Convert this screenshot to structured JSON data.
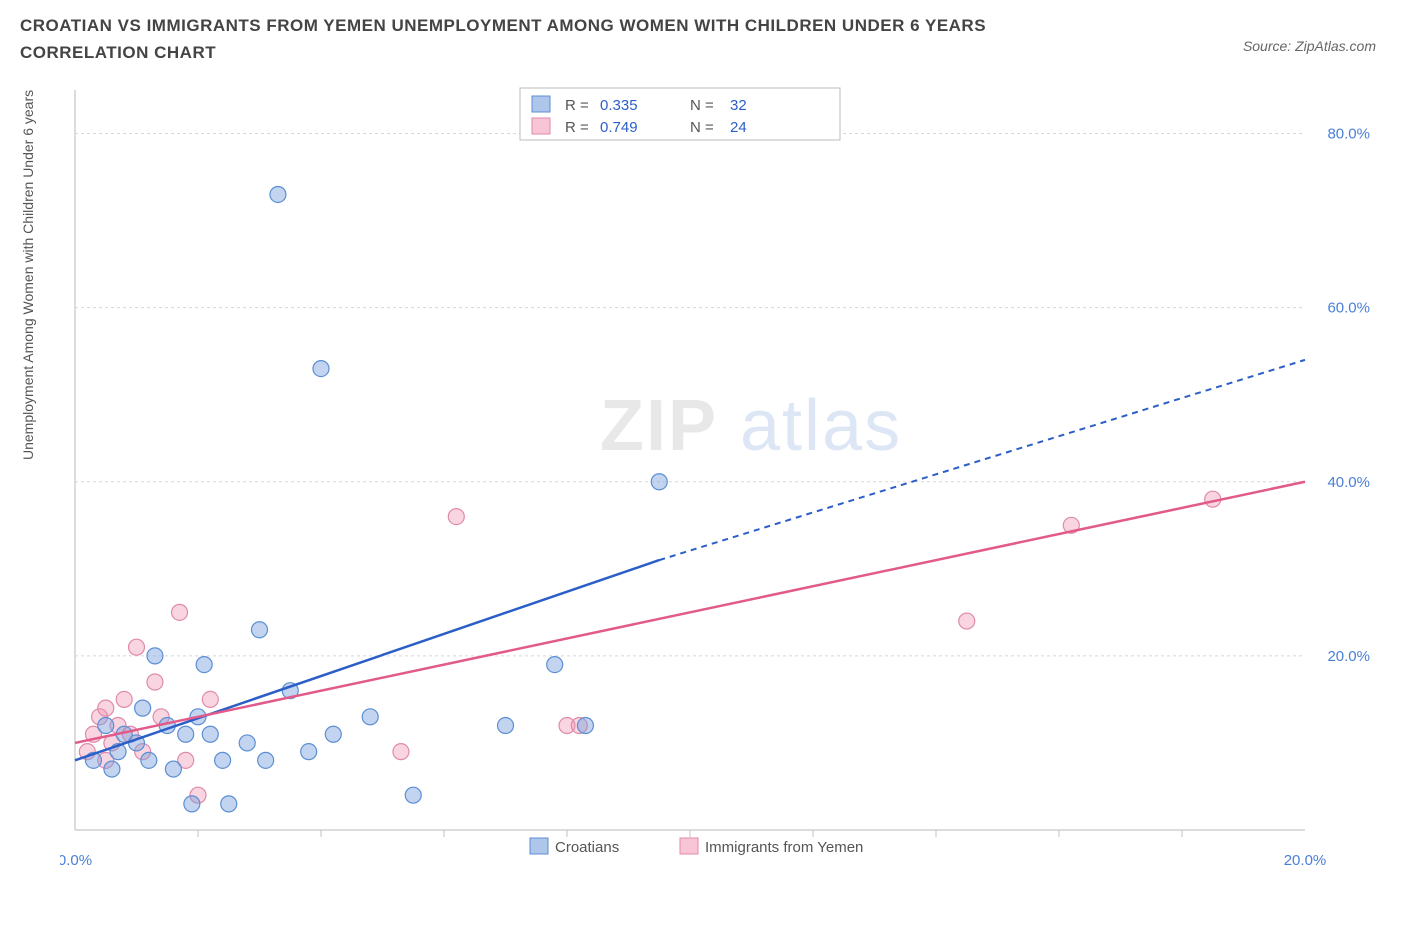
{
  "title": "CROATIAN VS IMMIGRANTS FROM YEMEN UNEMPLOYMENT AMONG WOMEN WITH CHILDREN UNDER 6 YEARS CORRELATION CHART",
  "source_label": "Source: ZipAtlas.com",
  "y_axis_label": "Unemployment Among Women with Children Under 6 years",
  "chart": {
    "type": "scatter",
    "xlim": [
      0,
      20
    ],
    "ylim": [
      0,
      85
    ],
    "x_ticks": [
      0,
      20
    ],
    "x_tick_labels": [
      "0.0%",
      "20.0%"
    ],
    "y_ticks": [
      20,
      40,
      60,
      80
    ],
    "y_tick_labels": [
      "20.0%",
      "40.0%",
      "60.0%",
      "80.0%"
    ],
    "x_minor_ticks": [
      2,
      4,
      6,
      8,
      10,
      12,
      14,
      16,
      18
    ],
    "background_color": "#ffffff",
    "grid_color": "#d8d8d8",
    "axis_color": "#d0d0d0",
    "marker_radius": 8,
    "series": {
      "croatians": {
        "label": "Croatians",
        "color_fill": "rgba(120,160,220,0.45)",
        "color_stroke": "#5b8fd4",
        "trend_color": "#2b5fc7",
        "r_value": "0.335",
        "n_value": "32",
        "points": [
          [
            0.3,
            8
          ],
          [
            0.5,
            12
          ],
          [
            0.6,
            7
          ],
          [
            0.7,
            9
          ],
          [
            0.8,
            11
          ],
          [
            1.0,
            10
          ],
          [
            1.1,
            14
          ],
          [
            1.2,
            8
          ],
          [
            1.3,
            20
          ],
          [
            1.5,
            12
          ],
          [
            1.6,
            7
          ],
          [
            1.8,
            11
          ],
          [
            1.9,
            3
          ],
          [
            2.0,
            13
          ],
          [
            2.1,
            19
          ],
          [
            2.2,
            11
          ],
          [
            2.4,
            8
          ],
          [
            2.5,
            3
          ],
          [
            2.8,
            10
          ],
          [
            3.0,
            23
          ],
          [
            3.1,
            8
          ],
          [
            3.3,
            73
          ],
          [
            3.5,
            16
          ],
          [
            3.8,
            9
          ],
          [
            4.0,
            53
          ],
          [
            4.2,
            11
          ],
          [
            4.8,
            13
          ],
          [
            5.5,
            4
          ],
          [
            7.0,
            12
          ],
          [
            7.8,
            19
          ],
          [
            8.3,
            12
          ],
          [
            9.5,
            40
          ]
        ],
        "trend": {
          "x1": 0,
          "y1": 8,
          "x2": 9.5,
          "y2": 31,
          "x_ext": 20,
          "y_ext": 54
        }
      },
      "yemen": {
        "label": "Immigrants from Yemen",
        "color_fill": "rgba(240,150,180,0.4)",
        "color_stroke": "#e08aaa",
        "trend_color": "#e25a8a",
        "r_value": "0.749",
        "n_value": "24",
        "points": [
          [
            0.2,
            9
          ],
          [
            0.3,
            11
          ],
          [
            0.4,
            13
          ],
          [
            0.5,
            8
          ],
          [
            0.5,
            14
          ],
          [
            0.6,
            10
          ],
          [
            0.7,
            12
          ],
          [
            0.8,
            15
          ],
          [
            0.9,
            11
          ],
          [
            1.0,
            21
          ],
          [
            1.1,
            9
          ],
          [
            1.3,
            17
          ],
          [
            1.4,
            13
          ],
          [
            1.7,
            25
          ],
          [
            1.8,
            8
          ],
          [
            2.0,
            4
          ],
          [
            2.2,
            15
          ],
          [
            5.3,
            9
          ],
          [
            6.2,
            36
          ],
          [
            8.0,
            12
          ],
          [
            8.2,
            12
          ],
          [
            14.5,
            24
          ],
          [
            16.2,
            35
          ],
          [
            18.5,
            38
          ]
        ],
        "trend": {
          "x1": 0,
          "y1": 10,
          "x2": 20,
          "y2": 40
        }
      }
    },
    "legend_top": {
      "r_label": "R =",
      "n_label": "N ="
    },
    "watermark": {
      "text1": "ZIP",
      "text2": "atlas"
    }
  }
}
